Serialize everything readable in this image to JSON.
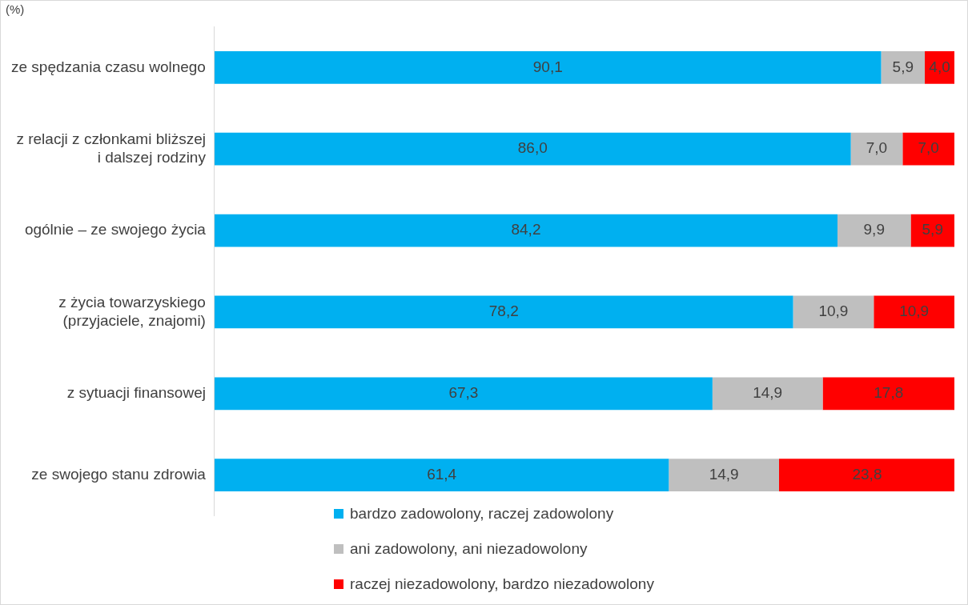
{
  "chart_data": {
    "type": "bar",
    "orientation": "horizontal",
    "stacked": true,
    "ylabel": "(%)",
    "categories": [
      "ze spędzania czasu wolnego",
      "z relacji z członkami bliższej i dalszej rodziny",
      "ogólnie – ze swojego życia",
      "z życia towarzyskiego (przyjaciele, znajomi)",
      "z sytuacji finansowej",
      "ze swojego stanu zdrowia"
    ],
    "series": [
      {
        "name": "bardzo zadowolony, raczej zadowolony",
        "color": "#00b0f0",
        "values": [
          90.1,
          86.0,
          84.2,
          78.2,
          67.3,
          61.4
        ],
        "value_labels": [
          "90,1",
          "86,0",
          "84,2",
          "78,2",
          "67,3",
          "61,4"
        ]
      },
      {
        "name": "ani zadowolony, ani niezadowolony",
        "color": "#bfbfbf",
        "values": [
          5.9,
          7.0,
          9.9,
          10.9,
          14.9,
          14.9
        ],
        "value_labels": [
          "5,9",
          "7,0",
          "9,9",
          "10,9",
          "14,9",
          "14,9"
        ]
      },
      {
        "name": "raczej niezadowolony, bardzo niezadowolony",
        "color": "#ff0000",
        "values": [
          4.0,
          7.0,
          5.9,
          10.9,
          17.8,
          23.8
        ],
        "value_labels": [
          "4,0",
          "7,0",
          "5,9",
          "10,9",
          "17,8",
          "23,8"
        ]
      }
    ],
    "xlim": [
      0,
      100
    ],
    "tick_labels": "y",
    "legend": "bottom"
  }
}
